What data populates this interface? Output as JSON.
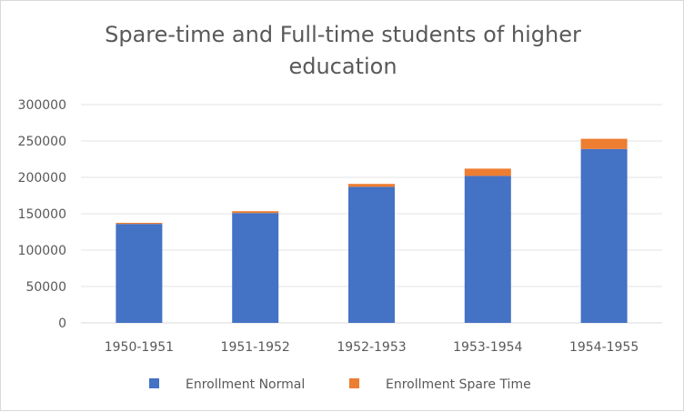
{
  "chart_data": {
    "type": "bar",
    "stacked": true,
    "title_lines": [
      "Spare-time and Full-time students of higher",
      "education"
    ],
    "categories": [
      "1950-1951",
      "1951-1952",
      "1952-1953",
      "1953-1954",
      "1954-1955"
    ],
    "series": [
      {
        "name": "Enrollment Normal",
        "color": "#4472c4",
        "values": [
          136000,
          151000,
          187000,
          202000,
          239000
        ]
      },
      {
        "name": "Enrollment Spare Time",
        "color": "#ed7d31",
        "values": [
          1500,
          2500,
          4000,
          10000,
          14000
        ]
      }
    ],
    "ylim": [
      0,
      300000
    ],
    "yticks": [
      "0",
      "50000",
      "100000",
      "150000",
      "200000",
      "250000",
      "300000"
    ],
    "grid": true,
    "legend_position": "bottom",
    "xlabel": "",
    "ylabel": ""
  }
}
